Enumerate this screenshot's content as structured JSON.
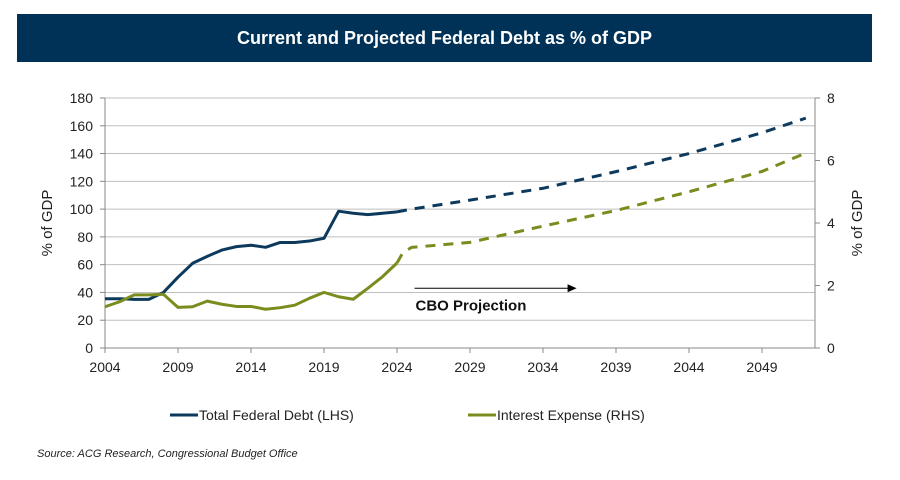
{
  "chart_data": {
    "type": "line",
    "title": "Current and Projected Federal Debt as % of GDP",
    "ylabel": "% of GDP",
    "y2label": "% of GDP",
    "xlim": [
      2004,
      2052
    ],
    "ylim": [
      0,
      180
    ],
    "y2lim": [
      0,
      8
    ],
    "xticks": [
      2004,
      2009,
      2014,
      2019,
      2024,
      2029,
      2034,
      2039,
      2044,
      2049
    ],
    "yticks": [
      0,
      20,
      40,
      60,
      80,
      100,
      120,
      140,
      160,
      180
    ],
    "y2ticks": [
      0,
      2,
      4,
      6,
      8
    ],
    "grid": true,
    "legend_placement": "bottom",
    "annotation": {
      "text": "CBO Projection",
      "arrow_from": 2025.2,
      "arrow_to": 2036.3,
      "arrow_y": 43
    },
    "series": [
      {
        "name": "Total Federal Debt (LHS)",
        "axis": "left",
        "color": "#0d3a5c",
        "actual": {
          "x": [
            2004,
            2005,
            2006,
            2007,
            2008,
            2009,
            2010,
            2011,
            2012,
            2013,
            2014,
            2015,
            2016,
            2017,
            2018,
            2019,
            2020,
            2021,
            2022,
            2023,
            2024
          ],
          "y": [
            35.5,
            35.5,
            35,
            35,
            40,
            51,
            61,
            66,
            70.5,
            73,
            74,
            72.5,
            76,
            76,
            77,
            79,
            98.5,
            97,
            96,
            97,
            98
          ]
        },
        "projected": {
          "x": [
            2024,
            2025,
            2029,
            2034,
            2039,
            2044,
            2049,
            2052
          ],
          "y": [
            98,
            100,
            106.5,
            115,
            127,
            140,
            155,
            165.5
          ]
        }
      },
      {
        "name": "Interest Expense (RHS)",
        "axis": "right",
        "color": "#7a8c1e",
        "actual": {
          "x": [
            2004,
            2005,
            2006,
            2007,
            2008,
            2009,
            2010,
            2011,
            2012,
            2013,
            2014,
            2015,
            2016,
            2017,
            2018,
            2019,
            2020,
            2021,
            2022,
            2023,
            2024
          ],
          "y": [
            1.32,
            1.48,
            1.7,
            1.7,
            1.72,
            1.3,
            1.32,
            1.5,
            1.4,
            1.33,
            1.33,
            1.24,
            1.29,
            1.37,
            1.59,
            1.78,
            1.64,
            1.56,
            1.91,
            2.28,
            2.72
          ]
        },
        "projected": {
          "x": [
            2024,
            2024.4,
            2025,
            2027,
            2029,
            2034,
            2039,
            2044,
            2049,
            2052
          ],
          "y": [
            2.72,
            3.05,
            3.22,
            3.3,
            3.38,
            3.9,
            4.4,
            5.0,
            5.65,
            6.24
          ]
        }
      }
    ]
  },
  "source": "Source: ACG Research, Congressional Budget Office"
}
